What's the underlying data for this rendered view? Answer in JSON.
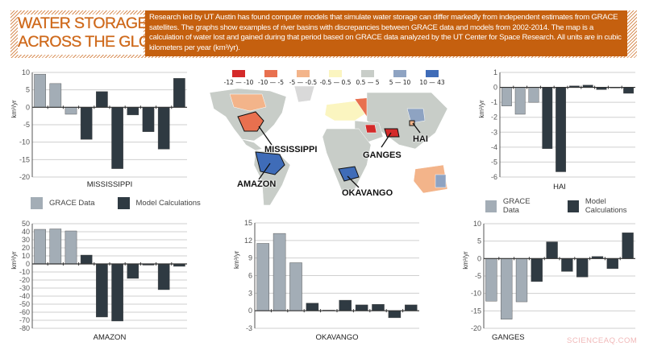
{
  "header": {
    "title_lines": [
      "WATER STORAGE TRENDS",
      "ACROSS THE GLOBE"
    ],
    "intro": "Research led by UT Austin has found computer models that simulate water storage can differ markedly from independent estimates from GRACE satellites. The graphs show examples of river basins with discrepancies between GRACE data and models from 2002-2014. The map is a calculation of water lost and gained during that period based on GRACE data analyzed by the UT Center for Space Research. All units are in cubic kilometers per year (km³/yr)."
  },
  "legend": {
    "grace_label": "GRACE Data",
    "model_label": "Model Calculations",
    "grace_color": "#a3adb6",
    "model_color": "#2f3a42"
  },
  "map": {
    "legend": [
      {
        "label": "-12 — -10",
        "color": "#d42a2a"
      },
      {
        "label": "-10 — -5",
        "color": "#e8704f"
      },
      {
        "label": "-5 — -0.5",
        "color": "#f3b48a"
      },
      {
        "label": "-0.5 — 0.5",
        "color": "#fbf5c0"
      },
      {
        "label": "0.5 — 5",
        "color": "#c8cdc8"
      },
      {
        "label": "5 — 10",
        "color": "#8ea3c2"
      },
      {
        "label": "10 — 43",
        "color": "#3f6cb8"
      }
    ],
    "basins": [
      "MISSISSIPPI",
      "AMAZON",
      "OKAVANGO",
      "GANGES",
      "HAI"
    ]
  },
  "watermark": "SCIENCEAQ.COM",
  "chart_data": [
    {
      "type": "bar",
      "title": "MISSISSIPPI",
      "ylabel": "km³/yr",
      "ylim": [
        -20,
        10
      ],
      "yticks": [
        10,
        5,
        0,
        -5,
        -10,
        -15,
        -20
      ],
      "grid": true,
      "series": [
        {
          "name": "GRACE Data",
          "values": [
            9.5,
            6.8,
            -2.0
          ]
        },
        {
          "name": "Model Calculations",
          "values": [
            -9.2,
            4.5,
            -17.6,
            -2.2,
            -7.0,
            -12.0,
            8.3
          ]
        }
      ]
    },
    {
      "type": "bar",
      "title": "AMAZON",
      "ylabel": "km³/yr",
      "ylim": [
        -80,
        50
      ],
      "yticks": [
        50,
        40,
        30,
        20,
        10,
        0,
        -10,
        -20,
        -30,
        -40,
        -50,
        -60,
        -70,
        -80
      ],
      "grid": true,
      "series": [
        {
          "name": "GRACE Data",
          "values": [
            43,
            43.5,
            41
          ]
        },
        {
          "name": "Model Calculations",
          "values": [
            11,
            -66,
            -71,
            -18,
            -1.5,
            -32,
            -3
          ]
        }
      ]
    },
    {
      "type": "bar",
      "title": "OKAVANGO",
      "ylabel": "km³/yr",
      "ylim": [
        -3,
        15
      ],
      "yticks": [
        15,
        12,
        9,
        6,
        3,
        0,
        -3
      ],
      "grid": true,
      "series": [
        {
          "name": "GRACE Data",
          "values": [
            11.5,
            13.2,
            8.2
          ]
        },
        {
          "name": "Model Calculations",
          "values": [
            1.3,
            0.1,
            1.8,
            1.0,
            1.1,
            -1.2,
            1.0
          ]
        }
      ]
    },
    {
      "type": "bar",
      "title": "HAI",
      "ylabel": "km³/yr",
      "ylim": [
        -6,
        1
      ],
      "yticks": [
        1,
        0,
        -1,
        -2,
        -3,
        -4,
        -5,
        -6
      ],
      "grid": true,
      "series": [
        {
          "name": "GRACE Data",
          "values": [
            -1.25,
            -1.8,
            -1.0
          ]
        },
        {
          "name": "Model Calculations",
          "values": [
            -4.1,
            -5.65,
            0.1,
            0.15,
            -0.15,
            0,
            -0.4
          ]
        }
      ]
    },
    {
      "type": "bar",
      "title": "GANGES",
      "ylabel": "km³/yr",
      "ylim": [
        -20,
        10
      ],
      "yticks": [
        10,
        5,
        0,
        -5,
        -10,
        -15,
        -20
      ],
      "grid": true,
      "series": [
        {
          "name": "GRACE Data",
          "values": [
            -12.2,
            -17.4,
            -12.4
          ]
        },
        {
          "name": "Model Calculations",
          "values": [
            -6.6,
            4.8,
            -3.7,
            -5.3,
            0.6,
            -2.9,
            7.4
          ]
        }
      ]
    }
  ]
}
